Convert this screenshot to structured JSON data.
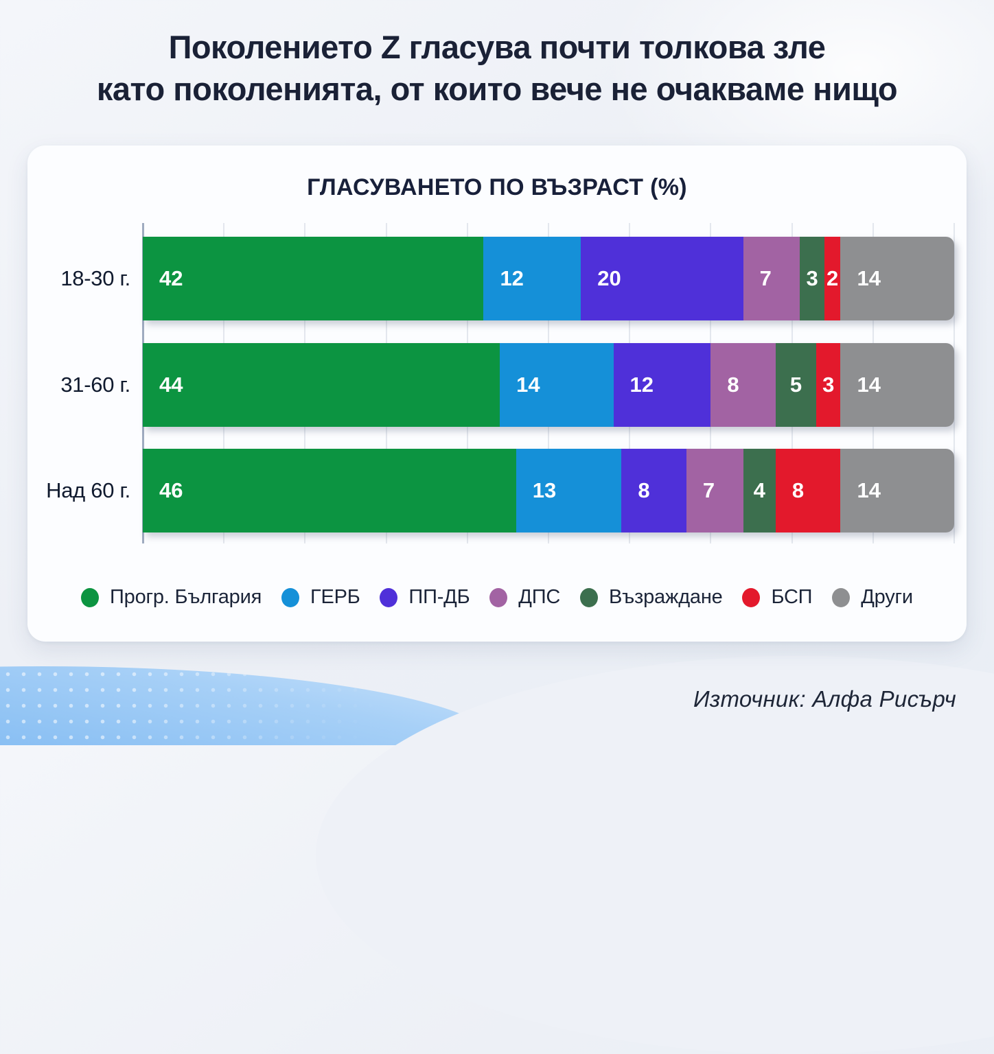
{
  "page": {
    "title_line1": "Поколението Z гласува почти толкова зле",
    "title_line2": "като поколенията, от които вече не очакваме нищо",
    "source": "Източник: Алфа Рисърч"
  },
  "chart_data": {
    "type": "bar",
    "variant": "horizontal-stacked",
    "title": "ГЛАСУВАНЕТО ПО ВЪЗРАСТ (%)",
    "unit": "%",
    "xlim": [
      0,
      100
    ],
    "gridlines": true,
    "legend_position": "bottom",
    "categories": [
      "18-30 г.",
      "31-60 г.",
      "Над 60 г."
    ],
    "series": [
      {
        "name": "Прогр. България",
        "color": "#0c9441",
        "values": [
          42,
          44,
          46
        ]
      },
      {
        "name": "ГЕРБ",
        "color": "#1590d8",
        "values": [
          12,
          14,
          13
        ]
      },
      {
        "name": "ПП-ДБ",
        "color": "#4f30d9",
        "values": [
          20,
          12,
          8
        ]
      },
      {
        "name": "ДПС",
        "color": "#a263a3",
        "values": [
          7,
          8,
          7
        ]
      },
      {
        "name": "Възраждане",
        "color": "#3c6f4e",
        "values": [
          3,
          5,
          4
        ]
      },
      {
        "name": "БСП",
        "color": "#e3192c",
        "values": [
          2,
          3,
          8
        ]
      },
      {
        "name": "Други",
        "color": "#8e8f91",
        "values": [
          14,
          14,
          14
        ]
      }
    ]
  }
}
